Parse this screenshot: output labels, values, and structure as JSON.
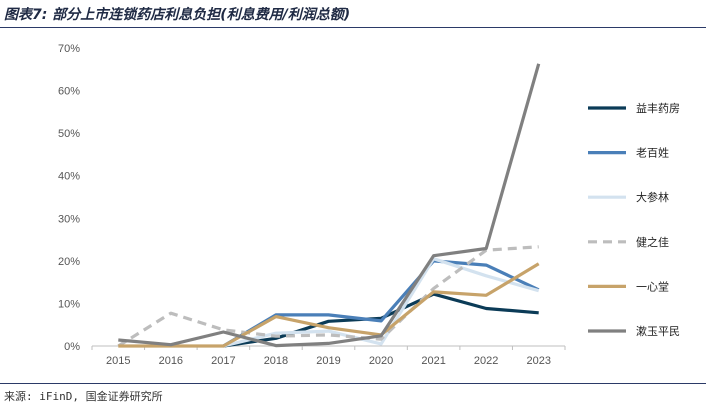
{
  "header": {
    "title": "图表7: 部分上市连锁药店利息负担(利息费用/利润总额)"
  },
  "footer": {
    "source": "来源: iFinD, 国金证券研究所"
  },
  "chart_data": {
    "type": "line",
    "title": "",
    "xlabel": "",
    "ylabel": "",
    "categories": [
      "2015",
      "2016",
      "2017",
      "2018",
      "2019",
      "2020",
      "2021",
      "2022",
      "2023"
    ],
    "ylim": [
      0,
      70
    ],
    "yticks": [
      "0%",
      "10%",
      "20%",
      "30%",
      "40%",
      "50%",
      "60%",
      "70%"
    ],
    "ytick_values": [
      0,
      10,
      20,
      30,
      40,
      50,
      60,
      70
    ],
    "grid": false,
    "legend_position": "right",
    "series": [
      {
        "name": "益丰药房",
        "color": "#0b3b57",
        "dash": false,
        "values": [
          null,
          null,
          0,
          1.8,
          5.8,
          6.5,
          12.2,
          8.8,
          7.8
        ]
      },
      {
        "name": "老百姓",
        "color": "#4a7fb8",
        "dash": false,
        "values": [
          null,
          null,
          0,
          7.3,
          7.3,
          5.9,
          20.0,
          19.0,
          13.2
        ]
      },
      {
        "name": "大参林",
        "color": "#d3e2ef",
        "dash": false,
        "values": [
          null,
          null,
          0,
          3.0,
          3.5,
          0.5,
          20.5,
          16.5,
          13.0
        ]
      },
      {
        "name": "健之佳",
        "color": "#bdbdbd",
        "dash": true,
        "values": [
          0,
          7.7,
          3.8,
          2.3,
          2.6,
          1.6,
          13.5,
          22.5,
          23.3
        ]
      },
      {
        "name": "一心堂",
        "color": "#c7a36a",
        "dash": false,
        "values": [
          0,
          0,
          0,
          6.9,
          4.3,
          2.6,
          12.7,
          11.9,
          19.3
        ]
      },
      {
        "name": "漱玉平民",
        "color": "#808080",
        "dash": false,
        "values": [
          1.4,
          0.3,
          3.3,
          0.1,
          0.6,
          2.4,
          21.2,
          22.9,
          66.3
        ]
      }
    ]
  }
}
